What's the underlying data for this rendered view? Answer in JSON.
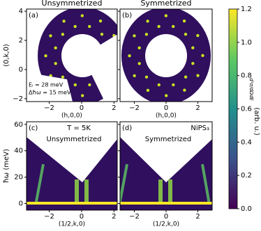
{
  "chart_data": [
    {
      "type": "heatmap",
      "title": "Unsymmetrized",
      "panel_label": "(a)",
      "annotations": [
        "Eᵢ = 28 meV",
        "Δħω = 15 meV"
      ],
      "x_label": "(h,0,0)",
      "y_label": "(0,k,0)",
      "xlim": [
        -3.4,
        2.2
      ],
      "ylim": [
        -2.2,
        4.15
      ],
      "xticks": [
        {
          "value": -2,
          "label": "−2"
        },
        0,
        2
      ],
      "yticks": [
        {
          "value": -2,
          "label": "−2"
        },
        0,
        2,
        4
      ]
    },
    {
      "type": "heatmap",
      "title": "Symmetrized",
      "panel_label": "(b)",
      "x_label": "(h,0,0)",
      "xlim": [
        -2.9,
        2.9
      ],
      "ylim": [
        -2.2,
        4.15
      ],
      "xticks": [
        {
          "value": -2,
          "label": "−2"
        },
        0,
        2
      ],
      "yticks": [
        {
          "value": -2,
          "label": "−2"
        },
        0,
        2,
        4
      ]
    },
    {
      "type": "heatmap",
      "panel_label": "(c)",
      "annotations": [
        "T = 5K"
      ],
      "inset_title": "Unsymmetrized",
      "x_label": "(1/2,k,0)",
      "y_label": "ħω (meV)",
      "xlim": [
        -3.4,
        2.2
      ],
      "ylim": [
        -5,
        62
      ],
      "xticks": [
        {
          "value": -2,
          "label": "−2"
        },
        0,
        2
      ],
      "yticks": [
        0,
        20,
        40,
        60
      ]
    },
    {
      "type": "heatmap",
      "panel_label": "(d)",
      "annotations": [
        "NiPS₃"
      ],
      "inset_title": "Symmetrized",
      "x_label": "(1/2,k,0)",
      "xlim": [
        -2.9,
        2.9
      ],
      "ylim": [
        -5,
        62
      ],
      "xticks": [
        {
          "value": -2,
          "label": "−2"
        },
        0,
        2
      ],
      "yticks": [
        0,
        20,
        40,
        60
      ]
    },
    {
      "type": "colorbar",
      "label": [
        "(arb. u.)",
        "d²σ/dΩdE"
      ],
      "ylim": [
        0,
        1.2
      ],
      "yticks": [
        {
          "value": 0,
          "label": "0.0"
        },
        0.2,
        0.4,
        0.6,
        0.8,
        {
          "value": 1,
          "label": "1.0"
        },
        1.2
      ],
      "colors": [
        "#440154",
        "#3b528b",
        "#21918c",
        "#5ec962",
        "#fde725"
      ]
    }
  ]
}
